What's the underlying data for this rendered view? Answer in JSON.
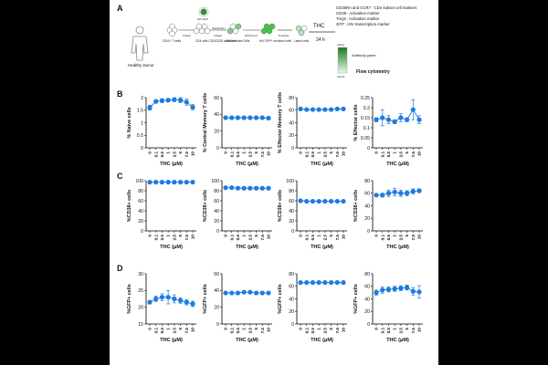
{
  "panel_labels": [
    "A",
    "B",
    "C",
    "D"
  ],
  "schematic": {
    "donor_label": "Healthy Donor",
    "steps": [
      "CD4+ T cells",
      "CD4 cells CD3/CD28 activated",
      "HIV infected Cells",
      "HIV GFP+ enriched cells",
      "Latent cells"
    ],
    "arrow_labels": [
      "3 days",
      "3 days",
      "FACS sort",
      "5 weeks"
    ],
    "virus_label": "HIV-GFP",
    "spinfection_label": "Spinfection",
    "thc_label": "THC",
    "time_label": "24 h",
    "gel_top": "Active",
    "gel_bottom": "Latent",
    "markers": [
      "CD45RA and CCR7 : CD4 subset cell markers",
      "CD38 : Activation marker",
      "Tregs : Activation marker",
      "GFP : HIV transcription marker"
    ],
    "antibody_panel": "Antibody panel",
    "flow_label": "Flow cytometry"
  },
  "chart_data": [
    {
      "type": "scatter",
      "row": "B",
      "ylabel": "% Naive cells",
      "xlabel": "THC (μM)",
      "x": [
        "0",
        "0.1",
        "0.5",
        "1",
        "2.5",
        "5",
        "7.5",
        "10"
      ],
      "values": [
        1.6,
        1.85,
        1.88,
        1.9,
        1.92,
        1.9,
        1.82,
        1.62
      ],
      "errors": [
        0.1,
        0.05,
        0.08,
        0.06,
        0.08,
        0.1,
        0.12,
        0.1
      ],
      "yticks": [
        0,
        0.5,
        1,
        1.5,
        2
      ],
      "ylim": [
        0,
        2
      ],
      "color": "#1e7be0"
    },
    {
      "type": "scatter",
      "row": "B",
      "ylabel": "% Central Memory T cells",
      "xlabel": "THC (μM)",
      "x": [
        "0",
        "0.1",
        "0.5",
        "1",
        "2.5",
        "5",
        "7.5",
        "10"
      ],
      "values": [
        36,
        36,
        36,
        36,
        36,
        36,
        36,
        35.5
      ],
      "errors": [
        0.5,
        0.5,
        0.5,
        0.5,
        0.5,
        0.5,
        0.5,
        0.5
      ],
      "yticks": [
        0,
        20,
        40,
        60
      ],
      "ylim": [
        0,
        60
      ],
      "color": "#1e7be0"
    },
    {
      "type": "scatter",
      "row": "B",
      "ylabel": "% Effector Memory T cells",
      "xlabel": "THC (μM)",
      "x": [
        "0",
        "0.1",
        "0.5",
        "1",
        "2.5",
        "5",
        "7.5",
        "10"
      ],
      "values": [
        62,
        61,
        61,
        61,
        61,
        61,
        62,
        62
      ],
      "errors": [
        0.8,
        0.8,
        0.8,
        0.8,
        0.8,
        0.8,
        0.8,
        0.8
      ],
      "yticks": [
        0,
        20,
        40,
        60,
        80
      ],
      "ylim": [
        0,
        80
      ],
      "color": "#1e7be0"
    },
    {
      "type": "scatter",
      "row": "B",
      "ylabel": "% Effector cells",
      "xlabel": "THC (μM)",
      "x": [
        "0",
        "0.1",
        "0.5",
        "1",
        "2.5",
        "5",
        "7.5",
        "10"
      ],
      "values": [
        0.14,
        0.15,
        0.14,
        0.13,
        0.15,
        0.14,
        0.19,
        0.14
      ],
      "errors": [
        0.01,
        0.04,
        0.02,
        0.01,
        0.02,
        0.01,
        0.05,
        0.02
      ],
      "yticks": [
        0,
        0.05,
        0.1,
        0.15,
        0.2,
        0.25
      ],
      "ylim": [
        0,
        0.25
      ],
      "color": "#1e7be0"
    },
    {
      "type": "scatter",
      "row": "C",
      "ylabel": "%CD38+ cells",
      "xlabel": "THC (μM)",
      "x": [
        "0",
        "0.1",
        "0.5",
        "1",
        "2.5",
        "5",
        "7.5",
        "10"
      ],
      "values": [
        97,
        97,
        97,
        97,
        97,
        97,
        97,
        97
      ],
      "errors": [
        0.5,
        0.5,
        0.5,
        0.5,
        0.5,
        0.5,
        0.5,
        0.5
      ],
      "yticks": [
        0,
        20,
        40,
        60,
        80,
        100
      ],
      "ylim": [
        0,
        100
      ],
      "color": "#1e7be0"
    },
    {
      "type": "scatter",
      "row": "C",
      "ylabel": "%CD38+ cells",
      "xlabel": "THC (μM)",
      "x": [
        "0",
        "0.1",
        "0.5",
        "1",
        "2.5",
        "5",
        "7.5",
        "10"
      ],
      "values": [
        86,
        86,
        85,
        85,
        85,
        85,
        85,
        85
      ],
      "errors": [
        0.8,
        0.8,
        0.8,
        0.8,
        0.8,
        0.8,
        0.8,
        0.8
      ],
      "yticks": [
        0,
        20,
        40,
        60,
        80,
        100
      ],
      "ylim": [
        0,
        100
      ],
      "color": "#1e7be0"
    },
    {
      "type": "scatter",
      "row": "C",
      "ylabel": "%CD38+ cells",
      "xlabel": "THC (μM)",
      "x": [
        "0",
        "0.1",
        "0.5",
        "1",
        "2.5",
        "5",
        "7.5",
        "10"
      ],
      "values": [
        60,
        59,
        59,
        59,
        59,
        59,
        59,
        59
      ],
      "errors": [
        0.8,
        0.8,
        0.8,
        0.8,
        0.8,
        0.8,
        0.8,
        0.8
      ],
      "yticks": [
        0,
        20,
        40,
        60,
        80,
        100
      ],
      "ylim": [
        0,
        100
      ],
      "color": "#1e7be0"
    },
    {
      "type": "scatter",
      "row": "C",
      "ylabel": "%CD38+ cells",
      "xlabel": "THC (μM)",
      "x": [
        "0",
        "0.1",
        "0.5",
        "1",
        "2.5",
        "5",
        "7.5",
        "10"
      ],
      "values": [
        57,
        57,
        60,
        62,
        60,
        60,
        63,
        64
      ],
      "errors": [
        2,
        3,
        5,
        6,
        5,
        4,
        4,
        3
      ],
      "yticks": [
        0,
        20,
        40,
        60,
        80
      ],
      "ylim": [
        0,
        80
      ],
      "color": "#1e7be0"
    },
    {
      "type": "scatter",
      "row": "D",
      "ylabel": "%GFP+ cells",
      "xlabel": "THC (μM)",
      "x": [
        "0",
        "0.1",
        "0.5",
        "1",
        "2.5",
        "5",
        "7.5",
        "10"
      ],
      "values": [
        21.5,
        22.5,
        23,
        23,
        22.5,
        22,
        21.5,
        21
      ],
      "errors": [
        0.5,
        0.8,
        1,
        2,
        1.2,
        0.8,
        0.8,
        0.8
      ],
      "yticks": [
        15,
        20,
        25,
        30
      ],
      "ylim": [
        15,
        30
      ],
      "color": "#1e7be0"
    },
    {
      "type": "scatter",
      "row": "D",
      "ylabel": "%GFP+ cells",
      "xlabel": "THC (μM)",
      "x": [
        "0",
        "0.1",
        "0.5",
        "1",
        "2.5",
        "5",
        "7.5",
        "10"
      ],
      "values": [
        37,
        37,
        37,
        38,
        38,
        37,
        37,
        37
      ],
      "errors": [
        1,
        1,
        1,
        1,
        1,
        1,
        1,
        1
      ],
      "yticks": [
        0,
        20,
        40,
        60
      ],
      "ylim": [
        0,
        60
      ],
      "color": "#1e7be0"
    },
    {
      "type": "scatter",
      "row": "D",
      "ylabel": "%GFP+ cells",
      "xlabel": "THC (μM)",
      "x": [
        "0",
        "0.1",
        "0.5",
        "1",
        "2.5",
        "5",
        "7.5",
        "10"
      ],
      "values": [
        66,
        66,
        66,
        66,
        66,
        66,
        66,
        66
      ],
      "errors": [
        0.8,
        0.8,
        0.8,
        0.8,
        0.8,
        0.8,
        0.8,
        0.8
      ],
      "yticks": [
        0,
        20,
        40,
        60,
        80
      ],
      "ylim": [
        0,
        80
      ],
      "color": "#1e7be0"
    },
    {
      "type": "scatter",
      "row": "D",
      "ylabel": "%GFP+ cells",
      "xlabel": "THC (μM)",
      "x": [
        "0",
        "0.1",
        "0.5",
        "1",
        "2.5",
        "5",
        "7.5",
        "10"
      ],
      "values": [
        50,
        54,
        55,
        56,
        57,
        58,
        52,
        51
      ],
      "errors": [
        4,
        5,
        4,
        4,
        4,
        4,
        6,
        10
      ],
      "yticks": [
        0,
        20,
        40,
        60,
        80
      ],
      "ylim": [
        0,
        80
      ],
      "color": "#1e7be0"
    }
  ]
}
